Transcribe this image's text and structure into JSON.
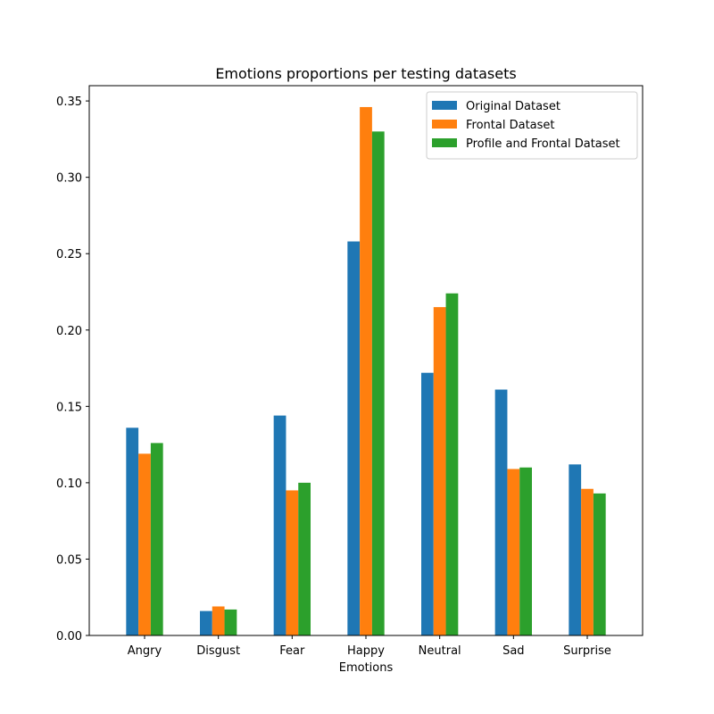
{
  "chart_data": {
    "type": "bar",
    "title": "Emotions proportions per testing datasets",
    "xlabel": "Emotions",
    "ylabel": "",
    "categories": [
      "Angry",
      "Disgust",
      "Fear",
      "Happy",
      "Neutral",
      "Sad",
      "Surprise"
    ],
    "series": [
      {
        "name": "Original Dataset",
        "color": "#1f77b4",
        "values": [
          0.136,
          0.016,
          0.144,
          0.258,
          0.172,
          0.161,
          0.112
        ]
      },
      {
        "name": "Frontal Dataset",
        "color": "#ff7f0e",
        "values": [
          0.119,
          0.019,
          0.095,
          0.346,
          0.215,
          0.109,
          0.096
        ]
      },
      {
        "name": "Profile and Frontal Dataset",
        "color": "#2ca02c",
        "values": [
          0.126,
          0.017,
          0.1,
          0.33,
          0.224,
          0.11,
          0.093
        ]
      }
    ],
    "ylim": [
      0,
      0.36
    ],
    "yticks": [
      "0.00",
      "0.05",
      "0.10",
      "0.15",
      "0.20",
      "0.25",
      "0.30",
      "0.35"
    ],
    "grid": false,
    "legend_position": "top-right"
  }
}
